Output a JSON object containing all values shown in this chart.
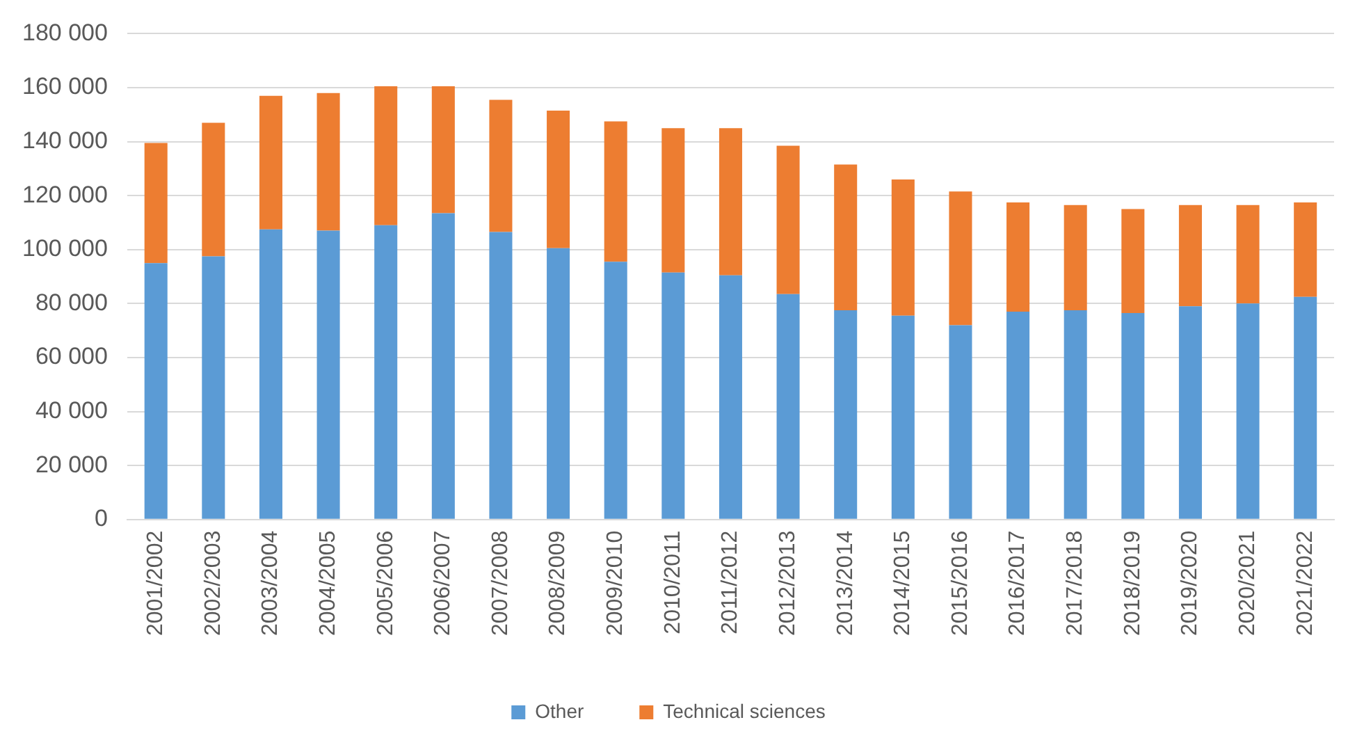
{
  "chart_data": {
    "type": "bar",
    "stacked": true,
    "categories": [
      "2001/2002",
      "2002/2003",
      "2003/2004",
      "2004/2005",
      "2005/2006",
      "2006/2007",
      "2007/2008",
      "2008/2009",
      "2009/2010",
      "2010/2011",
      "2011/2012",
      "2012/2013",
      "2013/2014",
      "2014/2015",
      "2015/2016",
      "2016/2017",
      "2017/2018",
      "2018/2019",
      "2019/2020",
      "2020/2021",
      "2021/2022"
    ],
    "series": [
      {
        "name": "Other",
        "color": "#5b9bd5",
        "values": [
          95000,
          97500,
          107500,
          107000,
          109000,
          113500,
          106500,
          100500,
          95500,
          91500,
          90500,
          83500,
          77500,
          75500,
          72000,
          77000,
          77500,
          76500,
          79000,
          80000,
          82500
        ]
      },
      {
        "name": "Technical sciences",
        "color": "#ed7d31",
        "values": [
          44500,
          49500,
          49500,
          51000,
          51500,
          47000,
          49000,
          51000,
          52000,
          53500,
          54500,
          55000,
          54000,
          50500,
          49500,
          40500,
          39000,
          38500,
          37500,
          36500,
          35000
        ]
      }
    ],
    "ylim": [
      0,
      180000
    ],
    "yticks": [
      {
        "value": 0,
        "label": "0"
      },
      {
        "value": 20000,
        "label": "20 000"
      },
      {
        "value": 40000,
        "label": "40 000"
      },
      {
        "value": 60000,
        "label": "60 000"
      },
      {
        "value": 80000,
        "label": "80 000"
      },
      {
        "value": 100000,
        "label": "100 000"
      },
      {
        "value": 120000,
        "label": "120 000"
      },
      {
        "value": 140000,
        "label": "140 000"
      },
      {
        "value": 160000,
        "label": "160 000"
      },
      {
        "value": 180000,
        "label": "180 000"
      }
    ],
    "grid": "y",
    "legend": "bottom"
  }
}
